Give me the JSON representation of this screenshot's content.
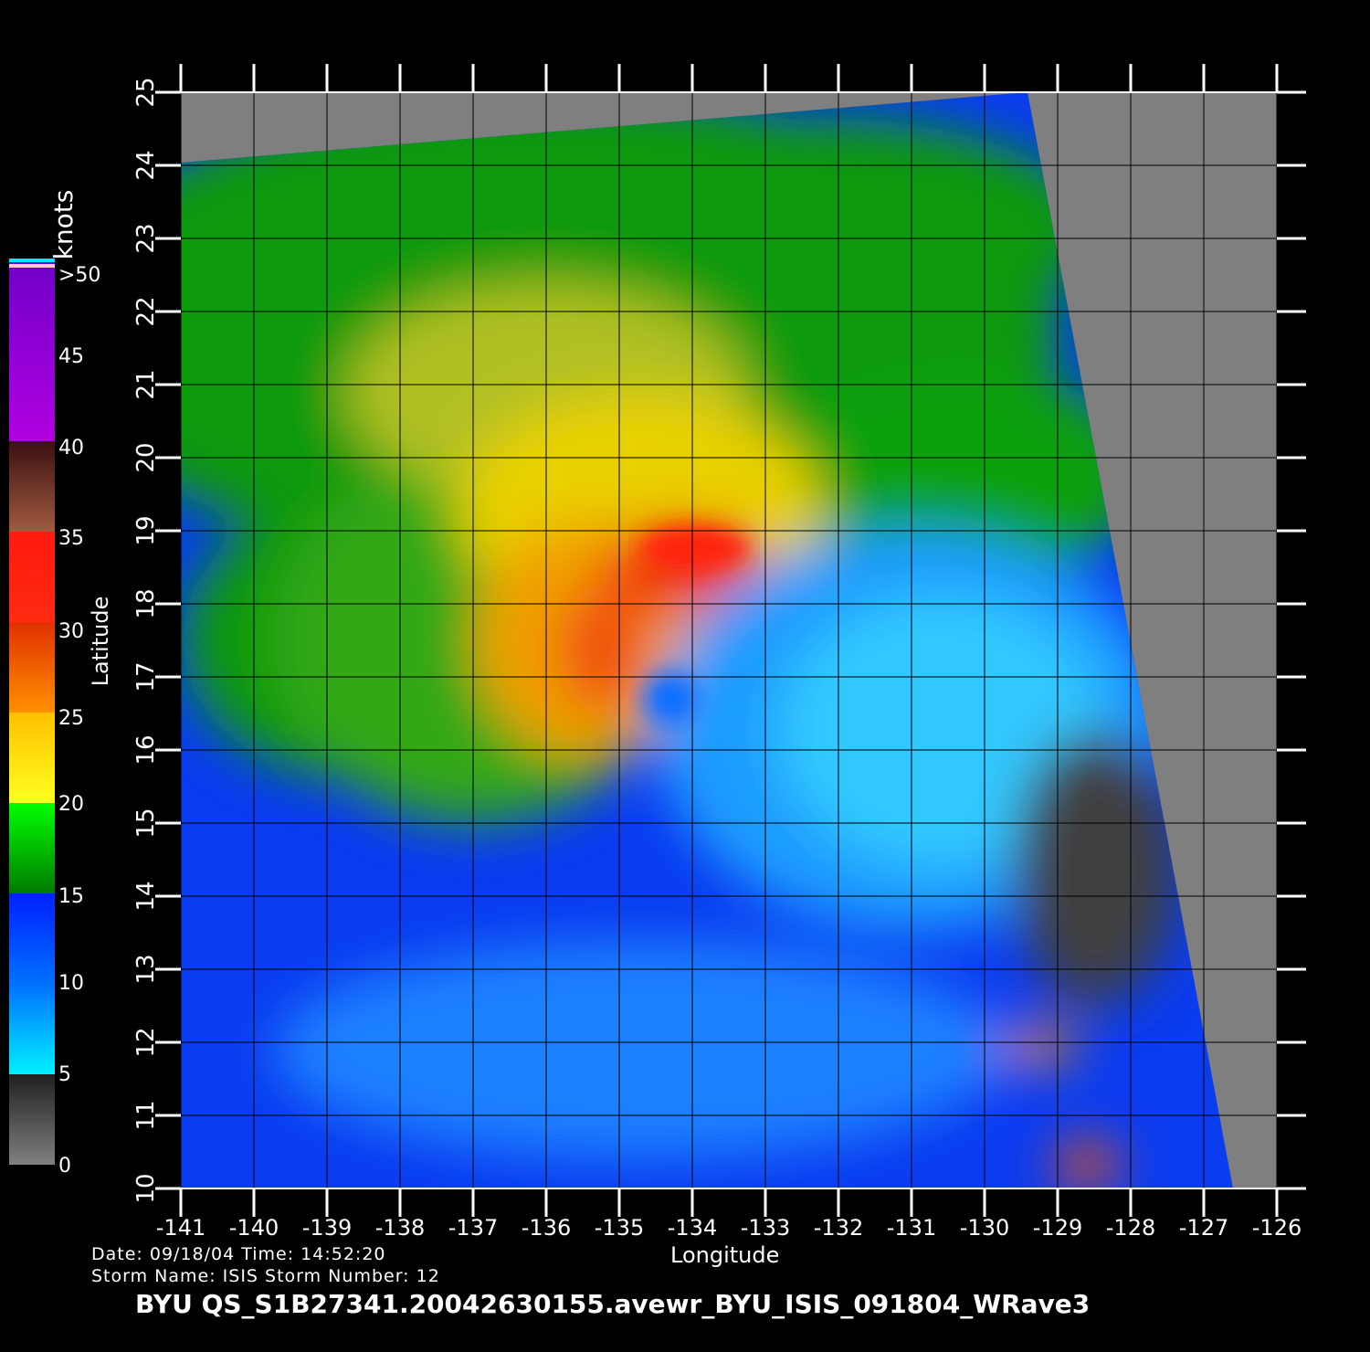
{
  "chart_data": {
    "type": "heatmap",
    "xlabel": "Longitude",
    "ylabel": "Latitude",
    "xlim": [
      -141,
      -126
    ],
    "ylim": [
      10,
      25
    ],
    "x_ticks": [
      "-141",
      "-140",
      "-139",
      "-138",
      "-137",
      "-136",
      "-135",
      "-134",
      "-133",
      "-132",
      "-131",
      "-130",
      "-129",
      "-128",
      "-127",
      "-126"
    ],
    "y_ticks": [
      "10",
      "11",
      "12",
      "13",
      "14",
      "15",
      "16",
      "17",
      "18",
      "19",
      "20",
      "21",
      "22",
      "23",
      "24",
      "25"
    ],
    "grid": true,
    "colorbar": {
      "units": "knots",
      "labels": [
        "0",
        "5",
        "10",
        "15",
        "20",
        "25",
        "30",
        "35",
        "40",
        "45",
        ">50"
      ],
      "colors": {
        "0-5": "#5a5a5a",
        "5-10": "#00e8ff",
        "10-15": "#0050ff",
        "15-20": "#00c000",
        "20-25": "#ffd000",
        "25-30": "#ff7000",
        "30-35": "#ff1a10",
        "35-40": "#a05a40",
        "40-45": "#ff00ff",
        "45-50": "#7000c8"
      }
    },
    "features": {
      "storm_center_lon": -134.3,
      "storm_center_lat": 16.8,
      "no_data_color": "#7f7f7f"
    }
  },
  "info": {
    "date_line": "Date: 09/18/04   Time: 14:52:20",
    "storm_line": "Storm  Name: ISIS   Storm  Number: 12",
    "title": "BYU  QS_S1B27341.20042630155.avewr_BYU_ISIS_091804_WRave3"
  }
}
